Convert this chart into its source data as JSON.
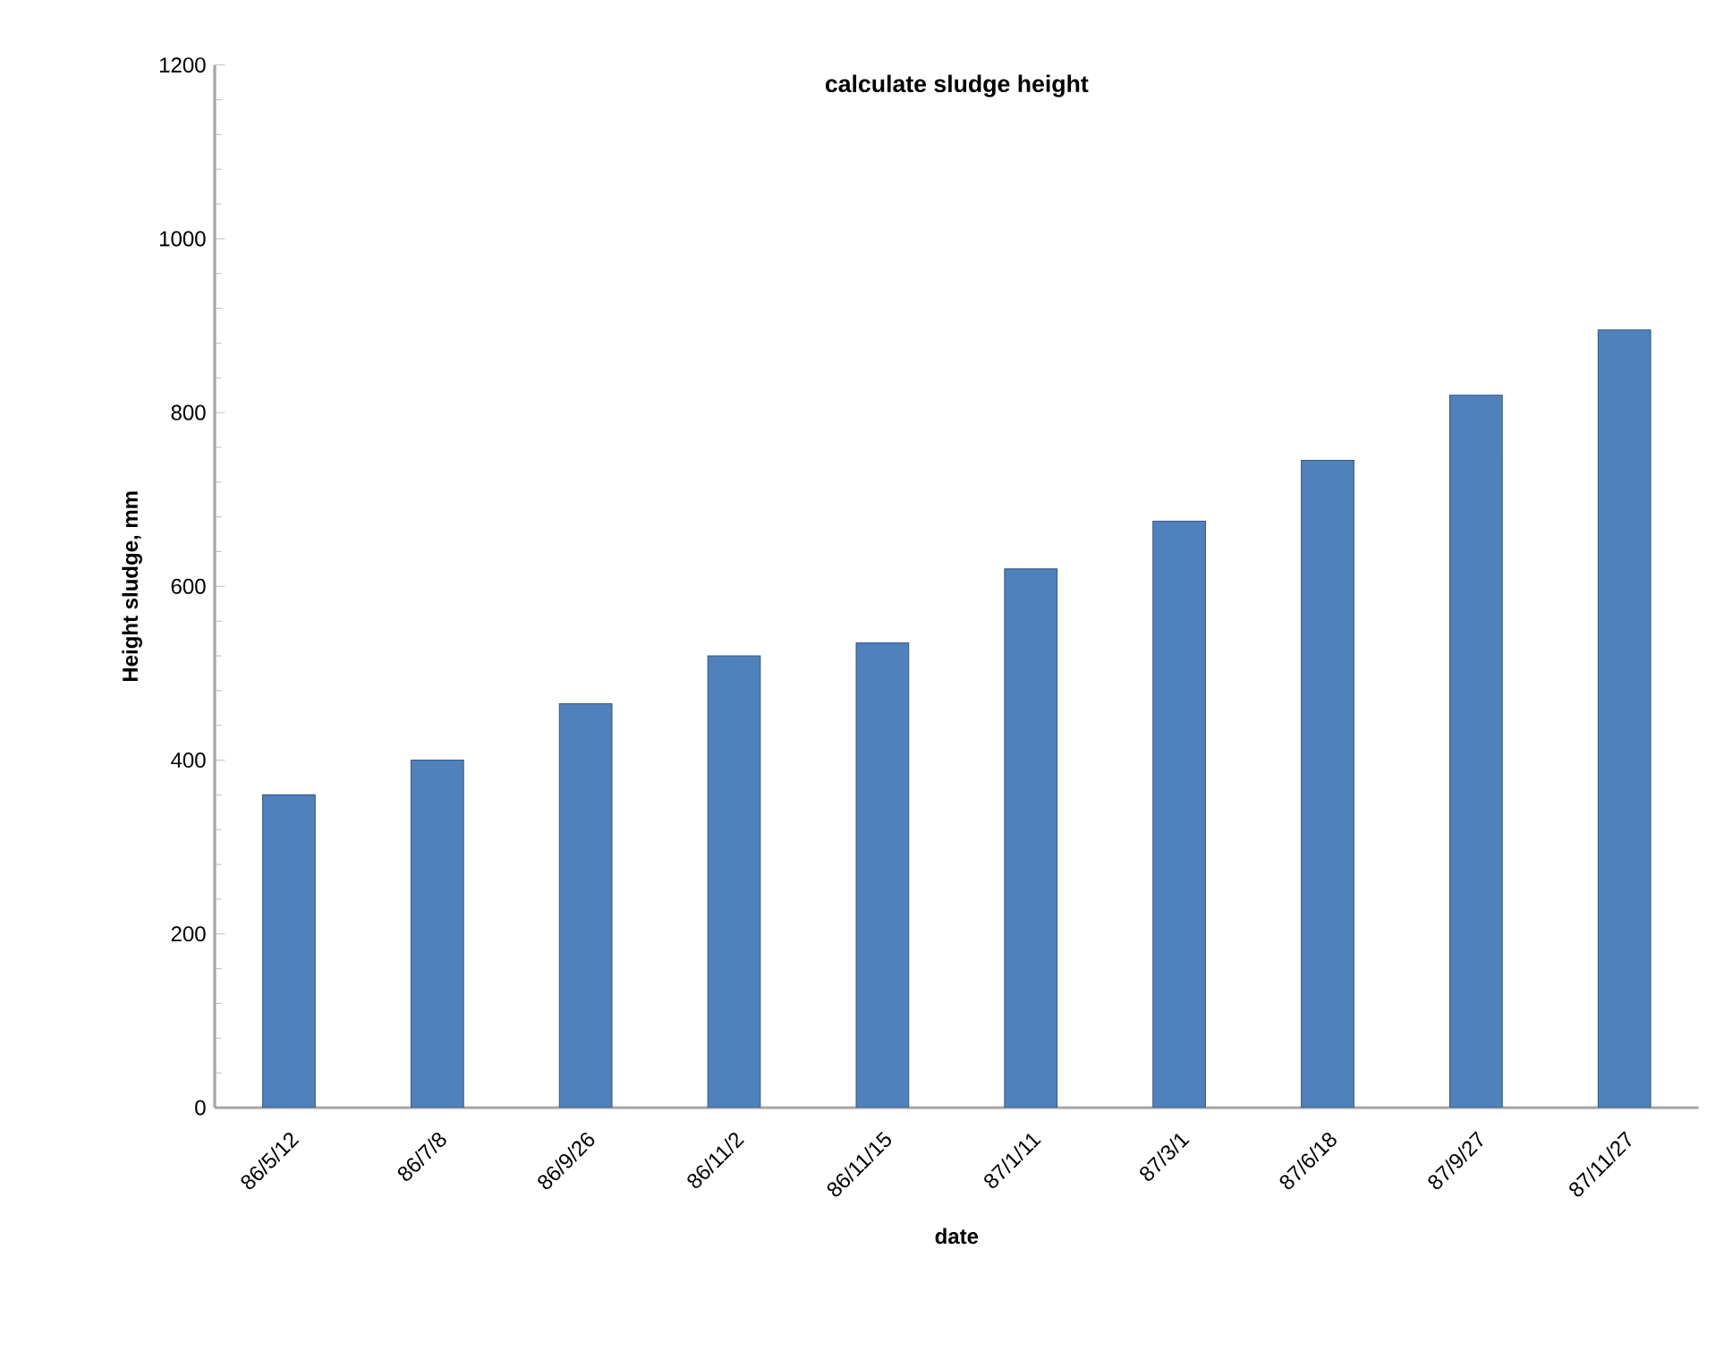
{
  "chart_data": {
    "type": "bar",
    "title": "calculate sludge height",
    "xlabel": "date",
    "ylabel": "Height sludge, mm",
    "categories": [
      "86/5/12",
      "86/7/8",
      "86/9/26",
      "86/11/2",
      "86/11/15",
      "87/1/11",
      "87/3/1",
      "87/6/18",
      "87/9/27",
      "87/11/27"
    ],
    "values": [
      360,
      400,
      465,
      520,
      535,
      620,
      675,
      745,
      820,
      895
    ],
    "color": "#4f81bd",
    "ylim": [
      0,
      1200
    ],
    "yticks": [
      0,
      200,
      400,
      600,
      800,
      1000,
      1200
    ]
  }
}
